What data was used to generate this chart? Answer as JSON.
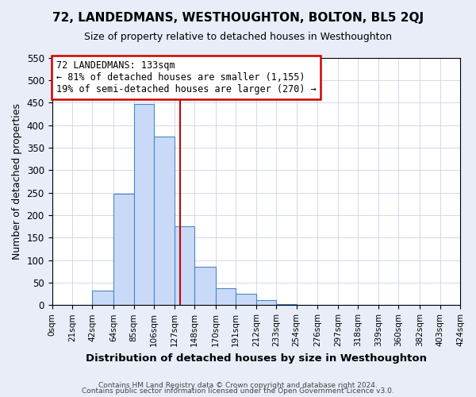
{
  "title": "72, LANDEDMANS, WESTHOUGHTON, BOLTON, BL5 2QJ",
  "subtitle": "Size of property relative to detached houses in Westhoughton",
  "xlabel": "Distribution of detached houses by size in Westhoughton",
  "ylabel": "Number of detached properties",
  "bin_edges": [
    0,
    21,
    42,
    64,
    85,
    106,
    127,
    148,
    170,
    191,
    212,
    233,
    254,
    276,
    297,
    318,
    339,
    360,
    382,
    403,
    424
  ],
  "bar_heights": [
    0,
    0,
    33,
    247,
    447,
    375,
    175,
    85,
    37,
    25,
    12,
    2,
    1,
    0,
    0,
    0,
    0,
    0,
    0,
    0
  ],
  "bar_color": "#c9daf8",
  "bar_edge_color": "#4a86c8",
  "property_size": 133,
  "vline_color": "#cc0000",
  "annotation_line1": "72 LANDEDMANS: 133sqm",
  "annotation_line2": "← 81% of detached houses are smaller (1,155)",
  "annotation_line3": "19% of semi-detached houses are larger (270) →",
  "annotation_box_color": "#cc0000",
  "ylim": [
    0,
    550
  ],
  "yticks": [
    0,
    50,
    100,
    150,
    200,
    250,
    300,
    350,
    400,
    450,
    500,
    550
  ],
  "tick_labels": [
    "0sqm",
    "21sqm",
    "42sqm",
    "64sqm",
    "85sqm",
    "106sqm",
    "127sqm",
    "148sqm",
    "170sqm",
    "191sqm",
    "212sqm",
    "233sqm",
    "254sqm",
    "276sqm",
    "297sqm",
    "318sqm",
    "339sqm",
    "360sqm",
    "382sqm",
    "403sqm",
    "424sqm"
  ],
  "footer_line1": "Contains HM Land Registry data © Crown copyright and database right 2024.",
  "footer_line2": "Contains public sector information licensed under the Open Government Licence v3.0.",
  "background_color": "#e8edf8",
  "plot_background_color": "#ffffff"
}
